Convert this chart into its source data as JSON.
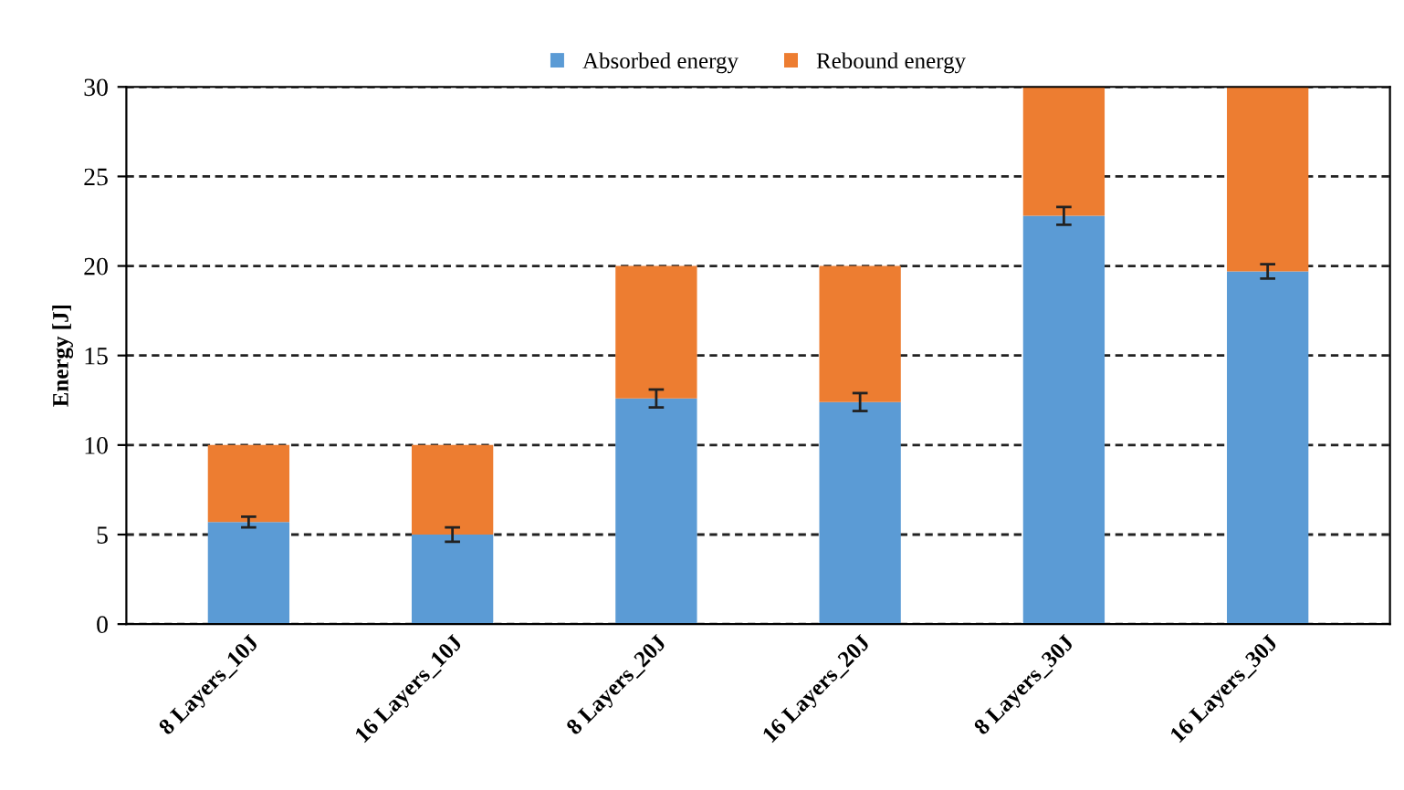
{
  "chart_data": {
    "type": "bar",
    "stacked": true,
    "ylabel": "Energy [J]",
    "categories": [
      "8 Layers_10J",
      "16 Layers_10J",
      "8 Layers_20J",
      "16 Layers_20J",
      "8 Layers_30J",
      "16 Layers_30J"
    ],
    "series": [
      {
        "name": "Absorbed energy",
        "color": "#5b9bd5",
        "values": [
          5.7,
          5.0,
          12.6,
          12.4,
          22.8,
          19.7
        ],
        "errors": [
          0.3,
          0.4,
          0.5,
          0.5,
          0.5,
          0.4
        ]
      },
      {
        "name": "Rebound energy",
        "color": "#ed7d31",
        "values": [
          4.3,
          5.0,
          7.4,
          7.6,
          7.2,
          10.3
        ]
      }
    ],
    "ylim": [
      0,
      30
    ],
    "yticks": [
      0,
      5,
      10,
      15,
      20,
      25,
      30
    ],
    "grid": "y",
    "legend": "top"
  }
}
